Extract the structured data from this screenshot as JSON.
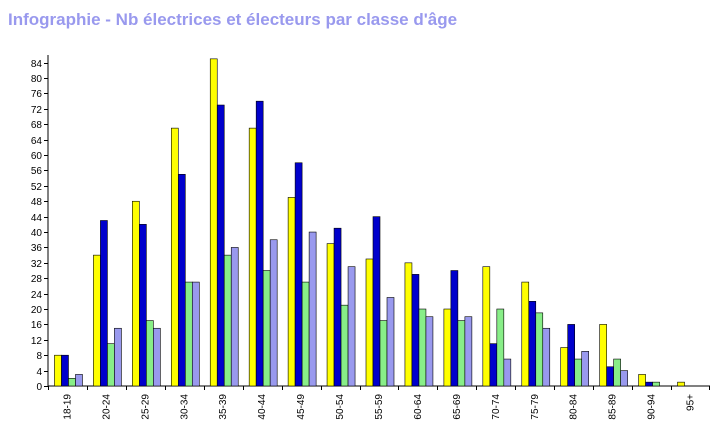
{
  "chart_data": {
    "type": "bar",
    "title": "Infographie - Nb électrices et électeurs par classe d'âge",
    "xlabel": "",
    "ylabel": "",
    "ylim": [
      0,
      86
    ],
    "yticks": [
      0,
      4,
      8,
      12,
      16,
      20,
      24,
      28,
      32,
      36,
      40,
      44,
      48,
      52,
      56,
      60,
      64,
      68,
      72,
      76,
      80,
      84
    ],
    "grid": false,
    "legend": "none",
    "categories": [
      "18-19",
      "20-24",
      "25-29",
      "30-34",
      "35-39",
      "40-44",
      "45-49",
      "50-54",
      "55-59",
      "60-64",
      "65-69",
      "70-74",
      "75-79",
      "80-84",
      "85-89",
      "90-94",
      "95+"
    ],
    "series": [
      {
        "color": "#ffff00",
        "values": [
          8,
          34,
          48,
          67,
          85,
          67,
          49,
          37,
          33,
          32,
          20,
          31,
          27,
          10,
          16,
          3,
          1
        ]
      },
      {
        "color": "#0000cc",
        "values": [
          8,
          43,
          42,
          55,
          73,
          74,
          58,
          41,
          44,
          29,
          30,
          11,
          22,
          16,
          5,
          1,
          0
        ]
      },
      {
        "color": "#88ee88",
        "values": [
          2,
          11,
          17,
          27,
          34,
          30,
          27,
          21,
          17,
          20,
          17,
          20,
          19,
          7,
          7,
          1,
          0
        ]
      },
      {
        "color": "#9999ee",
        "values": [
          3,
          15,
          15,
          27,
          36,
          38,
          40,
          31,
          23,
          18,
          18,
          7,
          15,
          9,
          4,
          0,
          0
        ]
      }
    ]
  }
}
